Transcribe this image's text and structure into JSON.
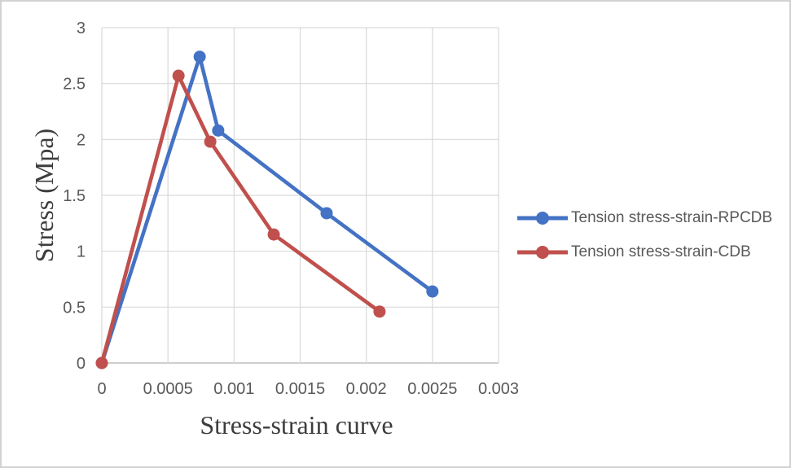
{
  "figure": {
    "background": "#ffffff",
    "border_color": "#d2d2d2"
  },
  "chart_data": {
    "type": "line",
    "title": "",
    "xlabel": "Stress-strain curve",
    "ylabel": "Stress (Mpa)",
    "xlim": [
      0,
      0.003
    ],
    "ylim": [
      0,
      3
    ],
    "xticks": [
      0,
      0.0005,
      0.001,
      0.0015,
      0.002,
      0.0025,
      0.003
    ],
    "xtick_labels": [
      "0",
      "0.0005",
      "0.001",
      "0.0015",
      "0.002",
      "0.0025",
      "0.003"
    ],
    "yticks": [
      0,
      0.5,
      1,
      1.5,
      2,
      2.5,
      3
    ],
    "ytick_labels": [
      "0",
      "0.5",
      "1",
      "1.5",
      "2",
      "2.5",
      "3"
    ],
    "grid": true,
    "gridline_color": "#d9d9d9",
    "axis_line_color": "#bfbfbf",
    "tick_label_color": "#595959",
    "axis_title_color": "#3d3d3d",
    "legend_position": "right",
    "legend_text_color": "#595959",
    "series": [
      {
        "name": "Tension stress-strain-RPCDB",
        "color": "#4472c4",
        "marker": "circle",
        "x": [
          0,
          0.00074,
          0.00088,
          0.0017,
          0.0025
        ],
        "y": [
          0,
          2.74,
          2.08,
          1.34,
          0.64
        ]
      },
      {
        "name": "Tension stress-strain-CDB",
        "color": "#c0504d",
        "marker": "circle",
        "x": [
          0,
          0.00058,
          0.00082,
          0.0013,
          0.0021
        ],
        "y": [
          0,
          2.57,
          1.98,
          1.15,
          0.46
        ]
      }
    ]
  }
}
